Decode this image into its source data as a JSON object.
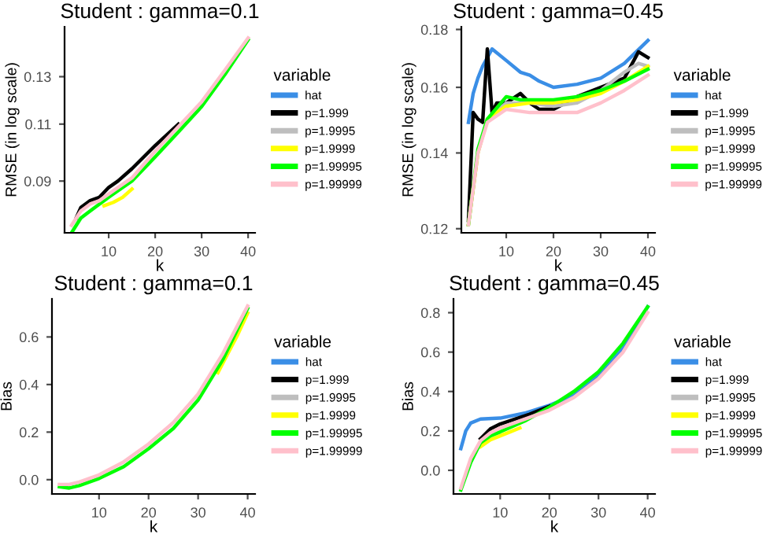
{
  "chart_data": [
    {
      "type": "line",
      "title": "Student : gamma=0.1",
      "xlabel": "k",
      "ylabel": "RMSE (in log scale)",
      "log": "y",
      "xlim": [
        0.5,
        41.5
      ],
      "xticks": [
        10,
        20,
        30,
        40
      ],
      "ylim": [
        0.075,
        0.155
      ],
      "yticks": [
        0.09,
        0.11,
        0.13
      ],
      "legend": "right",
      "legend_title": "variable",
      "grid": false,
      "series": [
        {
          "name": "hat",
          "color": "#3a8ee6"
        },
        {
          "name": "p=1.999",
          "color": "#000000",
          "x": [
            3,
            4,
            6,
            8,
            10,
            12,
            15,
            20,
            25
          ],
          "values": [
            0.079,
            0.082,
            0.084,
            0.085,
            0.088,
            0.09,
            0.094,
            0.102,
            0.11
          ]
        },
        {
          "name": "p=1.9995",
          "color": "#bebebe"
        },
        {
          "name": "p=1.9999",
          "color": "#ffff00",
          "x": [
            9,
            11,
            13,
            15
          ],
          "values": [
            0.0825,
            0.0835,
            0.085,
            0.0875
          ]
        },
        {
          "name": "p=1.99995",
          "color": "#00ff00",
          "x": [
            2,
            4,
            6,
            8,
            10,
            12,
            15,
            20,
            25,
            30,
            35,
            40
          ],
          "values": [
            0.075,
            0.079,
            0.081,
            0.083,
            0.085,
            0.087,
            0.09,
            0.098,
            0.107,
            0.117,
            0.131,
            0.148
          ]
        },
        {
          "name": "p=1.99999",
          "color": "#ffc0cb",
          "x": [
            2,
            4,
            6,
            8,
            10,
            12,
            15,
            20,
            25,
            30,
            35,
            40
          ],
          "values": [
            0.077,
            0.081,
            0.083,
            0.084,
            0.086,
            0.088,
            0.091,
            0.1,
            0.109,
            0.119,
            0.133,
            0.149
          ]
        }
      ]
    },
    {
      "type": "line",
      "title": "Student : gamma=0.45",
      "xlabel": "k",
      "ylabel": "RMSE (in log scale)",
      "log": "y",
      "xlim": [
        0.5,
        41.5
      ],
      "xticks": [
        10,
        20,
        30,
        40
      ],
      "ylim": [
        0.119,
        0.181
      ],
      "yticks": [
        0.12,
        0.14,
        0.16,
        0.18
      ],
      "legend": "right",
      "legend_title": "variable",
      "grid": false,
      "series": [
        {
          "name": "hat",
          "color": "#3a8ee6",
          "x": [
            2,
            3,
            4,
            5,
            7,
            10,
            13,
            15,
            17,
            20,
            25,
            30,
            35,
            40
          ],
          "values": [
            0.149,
            0.158,
            0.163,
            0.167,
            0.173,
            0.169,
            0.165,
            0.164,
            0.162,
            0.16,
            0.161,
            0.163,
            0.168,
            0.176
          ]
        },
        {
          "name": "p=1.999",
          "color": "#000000",
          "x": [
            2,
            3,
            4,
            5,
            6,
            7,
            8,
            10,
            13,
            15,
            17,
            20,
            25,
            30,
            35,
            38,
            40
          ],
          "values": [
            0.122,
            0.152,
            0.15,
            0.149,
            0.173,
            0.152,
            0.155,
            0.155,
            0.158,
            0.155,
            0.153,
            0.153,
            0.157,
            0.16,
            0.163,
            0.172,
            0.17
          ]
        },
        {
          "name": "p=1.9995",
          "color": "#bebebe",
          "x": [
            2,
            4,
            6,
            10,
            15,
            20,
            25,
            30,
            35,
            38,
            40
          ],
          "values": [
            0.121,
            0.14,
            0.15,
            0.155,
            0.155,
            0.154,
            0.155,
            0.159,
            0.165,
            0.168,
            0.167
          ]
        },
        {
          "name": "p=1.9999",
          "color": "#ffff00",
          "x": [
            2,
            4,
            6,
            10,
            15,
            20,
            25,
            30,
            35,
            40
          ],
          "values": [
            0.121,
            0.14,
            0.15,
            0.154,
            0.155,
            0.155,
            0.156,
            0.158,
            0.162,
            0.167
          ]
        },
        {
          "name": "p=1.99995",
          "color": "#00ff00",
          "x": [
            2,
            4,
            6,
            10,
            13,
            15,
            20,
            25,
            30,
            35,
            40
          ],
          "values": [
            0.121,
            0.141,
            0.15,
            0.157,
            0.156,
            0.156,
            0.156,
            0.157,
            0.159,
            0.162,
            0.166
          ]
        },
        {
          "name": "p=1.99999",
          "color": "#ffc0cb",
          "x": [
            2,
            4,
            6,
            10,
            15,
            20,
            25,
            30,
            35,
            40
          ],
          "values": [
            0.121,
            0.14,
            0.149,
            0.153,
            0.152,
            0.152,
            0.152,
            0.155,
            0.159,
            0.164
          ]
        }
      ]
    },
    {
      "type": "line",
      "title": "Student : gamma=0.1",
      "xlabel": "k",
      "ylabel": "Bias",
      "xlim": [
        0.5,
        41.5
      ],
      "xticks": [
        10,
        20,
        30,
        40
      ],
      "ylim": [
        -0.06,
        0.76
      ],
      "yticks": [
        {
          "value": 0,
          "label": "0.0"
        },
        0.2,
        0.4,
        0.6
      ],
      "legend": "right",
      "legend_title": "variable",
      "grid": false,
      "series": [
        {
          "name": "hat",
          "color": "#3a8ee6"
        },
        {
          "name": "p=1.999",
          "color": "#000000"
        },
        {
          "name": "p=1.9995",
          "color": "#bebebe"
        },
        {
          "name": "p=1.9999",
          "color": "#ffff00",
          "x": [
            34,
            36,
            38,
            40
          ],
          "values": [
            0.45,
            0.53,
            0.61,
            0.7
          ]
        },
        {
          "name": "p=1.99995",
          "color": "#00ff00",
          "x": [
            2,
            4,
            6,
            8,
            10,
            15,
            20,
            25,
            30,
            35,
            40
          ],
          "values": [
            -0.03,
            -0.035,
            -0.025,
            -0.01,
            0.005,
            0.055,
            0.13,
            0.215,
            0.335,
            0.505,
            0.72
          ]
        },
        {
          "name": "p=1.99999",
          "color": "#ffc0cb",
          "x": [
            2,
            4,
            6,
            8,
            10,
            15,
            20,
            25,
            30,
            35,
            40
          ],
          "values": [
            -0.02,
            -0.02,
            -0.01,
            0.005,
            0.02,
            0.075,
            0.15,
            0.24,
            0.36,
            0.53,
            0.73
          ]
        }
      ]
    },
    {
      "type": "line",
      "title": "Student : gamma=0.45",
      "xlabel": "k",
      "ylabel": "Bias",
      "xlim": [
        0.5,
        41.5
      ],
      "xticks": [
        10,
        20,
        30,
        40
      ],
      "ylim": [
        -0.12,
        0.87
      ],
      "yticks": [
        {
          "value": 0,
          "label": "0.0"
        },
        0.2,
        0.4,
        0.6,
        0.8
      ],
      "legend": "right",
      "legend_title": "variable",
      "grid": false,
      "series": [
        {
          "name": "hat",
          "color": "#3a8ee6",
          "x": [
            2,
            3,
            4,
            6,
            10,
            15,
            20,
            25,
            30,
            35,
            40
          ],
          "values": [
            0.11,
            0.2,
            0.24,
            0.26,
            0.265,
            0.29,
            0.33,
            0.38,
            0.48,
            0.62,
            0.83
          ]
        },
        {
          "name": "p=1.999",
          "color": "#000000",
          "x": [
            6,
            8,
            10,
            13,
            16,
            20
          ],
          "values": [
            0.16,
            0.21,
            0.235,
            0.26,
            0.285,
            0.325
          ]
        },
        {
          "name": "p=1.9995",
          "color": "#bebebe"
        },
        {
          "name": "p=1.9999",
          "color": "#ffff00",
          "x": [
            6,
            8,
            10,
            12,
            14
          ],
          "values": [
            0.12,
            0.155,
            0.175,
            0.195,
            0.215
          ]
        },
        {
          "name": "p=1.99995",
          "color": "#00ff00",
          "x": [
            2,
            4,
            6,
            8,
            10,
            15,
            20,
            25,
            30,
            35,
            40
          ],
          "values": [
            -0.1,
            0.04,
            0.14,
            0.175,
            0.195,
            0.25,
            0.32,
            0.4,
            0.5,
            0.645,
            0.83
          ]
        },
        {
          "name": "p=1.99999",
          "color": "#ffc0cb",
          "x": [
            2,
            4,
            6,
            8,
            10,
            15,
            20,
            25,
            30,
            35,
            40
          ],
          "values": [
            -0.09,
            0.06,
            0.15,
            0.19,
            0.215,
            0.26,
            0.305,
            0.37,
            0.465,
            0.6,
            0.8
          ]
        }
      ]
    }
  ]
}
